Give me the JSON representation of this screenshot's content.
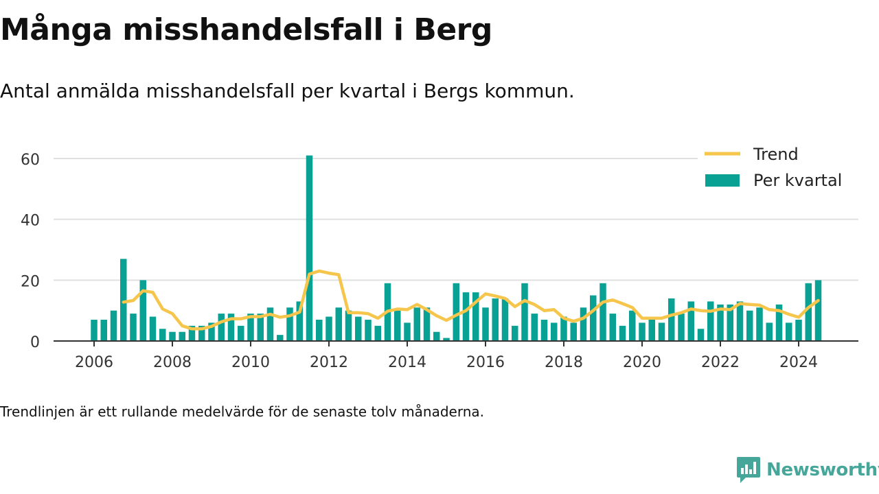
{
  "title": "Många misshandelsfall i Berg",
  "subtitle": "Antal anmälda misshandelsfall per kvartal i Bergs kommun.",
  "note": "Trendlinjen är ett rullande medelvärde för de senaste tolv månaderna.",
  "brand": {
    "name": "Newsworthy"
  },
  "colors": {
    "bars": "#0aa195",
    "trend": "#f6c54b",
    "grid": "#e0e0e0",
    "axis": "#333333",
    "text": "#111111"
  },
  "chart_data": {
    "type": "bar",
    "title": "Många misshandelsfall i Berg",
    "xlabel": "",
    "ylabel": "",
    "ylim": [
      0,
      60
    ],
    "yticks": [
      0,
      20,
      40,
      60
    ],
    "xticks": [
      "2006",
      "2008",
      "2010",
      "2012",
      "2014",
      "2016",
      "2018",
      "2020",
      "2022",
      "2024"
    ],
    "grid": true,
    "legend_position": "top-right",
    "legend": [
      "Trend",
      "Per kvartal"
    ],
    "series": [
      {
        "name": "Per kvartal",
        "type": "bar",
        "x": [
          2006.0,
          2006.25,
          2006.5,
          2006.75,
          2007.0,
          2007.25,
          2007.5,
          2007.75,
          2008.0,
          2008.25,
          2008.5,
          2008.75,
          2009.0,
          2009.25,
          2009.5,
          2009.75,
          2010.0,
          2010.25,
          2010.5,
          2010.75,
          2011.0,
          2011.25,
          2011.5,
          2011.75,
          2012.0,
          2012.25,
          2012.5,
          2012.75,
          2013.0,
          2013.25,
          2013.5,
          2013.75,
          2014.0,
          2014.25,
          2014.5,
          2014.75,
          2015.0,
          2015.25,
          2015.5,
          2015.75,
          2016.0,
          2016.25,
          2016.5,
          2016.75,
          2017.0,
          2017.25,
          2017.5,
          2017.75,
          2018.0,
          2018.25,
          2018.5,
          2018.75,
          2019.0,
          2019.25,
          2019.5,
          2019.75,
          2020.0,
          2020.25,
          2020.5,
          2020.75,
          2021.0,
          2021.25,
          2021.5,
          2021.75,
          2022.0,
          2022.25,
          2022.5,
          2022.75,
          2023.0,
          2023.25,
          2023.5,
          2023.75,
          2024.0,
          2024.25,
          2024.5
        ],
        "values": [
          7,
          7,
          10,
          27,
          9,
          20,
          8,
          4,
          3,
          3,
          5,
          5,
          6,
          9,
          9,
          5,
          9,
          9,
          11,
          2,
          11,
          13,
          61,
          7,
          8,
          11,
          10,
          8,
          7,
          5,
          19,
          10,
          6,
          11,
          11,
          3,
          1,
          19,
          16,
          16,
          11,
          14,
          14,
          5,
          19,
          9,
          7,
          6,
          8,
          6,
          11,
          15,
          19,
          9,
          5,
          10,
          6,
          8,
          6,
          14,
          9,
          13,
          4,
          13,
          12,
          12,
          13,
          10,
          11,
          6,
          12,
          6,
          7,
          19,
          20
        ]
      },
      {
        "name": "Trend",
        "type": "line",
        "x": [
          2006.75,
          2007.0,
          2007.25,
          2007.5,
          2007.75,
          2008.0,
          2008.25,
          2008.5,
          2008.75,
          2009.0,
          2009.25,
          2009.5,
          2009.75,
          2010.0,
          2010.25,
          2010.5,
          2010.75,
          2011.0,
          2011.25,
          2011.5,
          2011.75,
          2012.0,
          2012.25,
          2012.5,
          2012.75,
          2013.0,
          2013.25,
          2013.5,
          2013.75,
          2014.0,
          2014.25,
          2014.5,
          2014.75,
          2015.0,
          2015.25,
          2015.5,
          2015.75,
          2016.0,
          2016.25,
          2016.5,
          2016.75,
          2017.0,
          2017.25,
          2017.5,
          2017.75,
          2018.0,
          2018.25,
          2018.5,
          2018.75,
          2019.0,
          2019.25,
          2019.5,
          2019.75,
          2020.0,
          2020.25,
          2020.5,
          2020.75,
          2021.0,
          2021.25,
          2021.5,
          2021.75,
          2022.0,
          2022.25,
          2022.5,
          2022.75,
          2023.0,
          2023.25,
          2023.5,
          2023.75,
          2024.0,
          2024.25,
          2024.5
        ],
        "values": [
          12.8,
          13.3,
          16.5,
          16.0,
          10.5,
          9.0,
          5.0,
          4.0,
          4.0,
          4.8,
          6.3,
          7.3,
          7.3,
          8.0,
          8.0,
          8.8,
          7.8,
          8.3,
          9.5,
          22.0,
          23.0,
          22.3,
          21.8,
          9.3,
          9.3,
          9.0,
          7.5,
          9.8,
          10.5,
          10.3,
          12.0,
          10.3,
          8.3,
          6.8,
          8.5,
          10.0,
          12.8,
          15.5,
          14.8,
          14.0,
          11.3,
          13.3,
          12.0,
          10.0,
          10.3,
          7.5,
          6.5,
          7.5,
          10.0,
          12.8,
          13.5,
          12.3,
          11.0,
          7.5,
          7.5,
          7.5,
          8.5,
          9.3,
          10.5,
          10.0,
          9.8,
          10.5,
          10.3,
          12.3,
          12.0,
          11.8,
          10.3,
          10.0,
          8.8,
          7.8,
          11.0,
          13.3
        ]
      }
    ]
  }
}
